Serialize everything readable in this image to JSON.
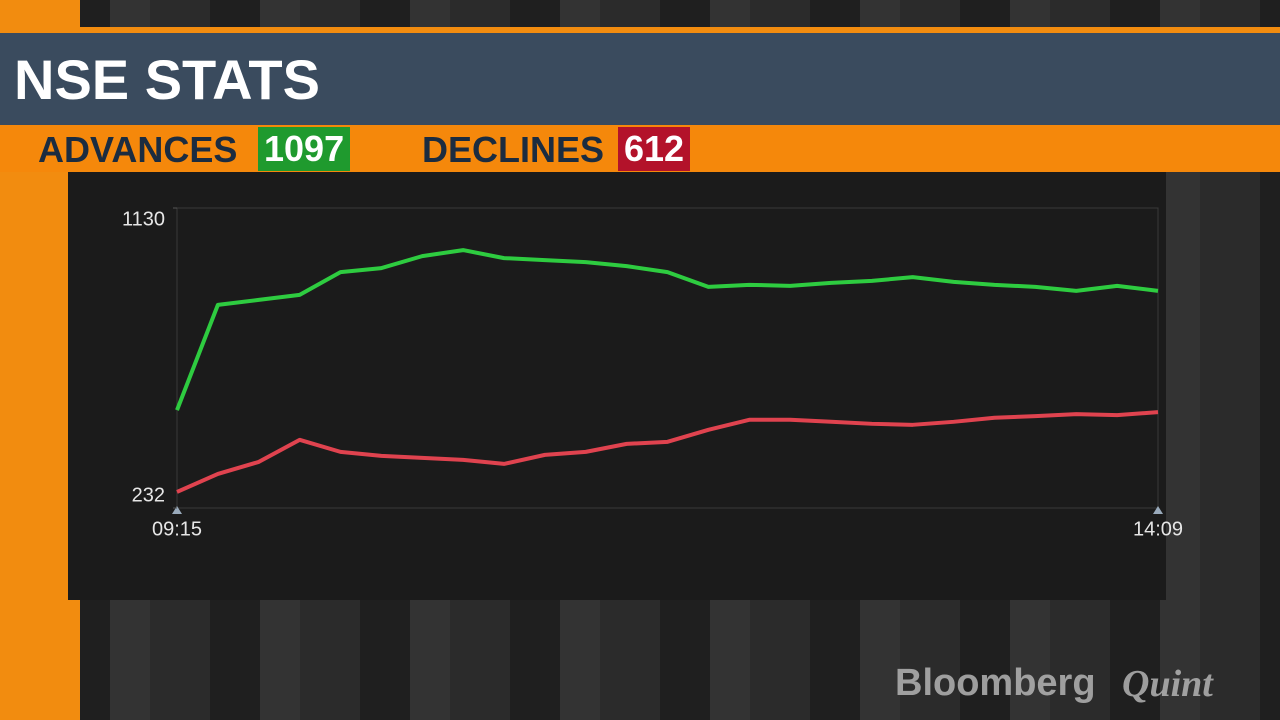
{
  "header": {
    "title": "NSE STATS",
    "advances_label": "ADVANCES",
    "advances": 1097,
    "declines_label": "DECLINES",
    "declines": 612
  },
  "chart_data": {
    "type": "line",
    "categories": [
      "09:15",
      null,
      null,
      null,
      null,
      null,
      null,
      null,
      null,
      null,
      null,
      null,
      null,
      null,
      null,
      null,
      null,
      null,
      null,
      null,
      null,
      null,
      null,
      null,
      "14:09"
    ],
    "series": [
      {
        "color": "#2ecc40",
        "values": [
          525,
          840,
          855,
          870,
          938,
          950,
          986,
          1004,
          980,
          974,
          968,
          956,
          938,
          894,
          900,
          897,
          906,
          912,
          923,
          909,
          900,
          894,
          882,
          897,
          882
        ]
      },
      {
        "color": "#e0434f",
        "values": [
          280,
          334,
          370,
          436,
          400,
          388,
          382,
          376,
          364,
          391,
          400,
          424,
          430,
          466,
          496,
          496,
          490,
          484,
          481,
          490,
          502,
          507,
          513,
          510,
          519
        ]
      }
    ],
    "ylim": [
      232,
      1130
    ],
    "yticks": [
      232,
      1130
    ]
  },
  "watermark": {
    "brand": "Bloomberg",
    "partner": "Quint"
  }
}
